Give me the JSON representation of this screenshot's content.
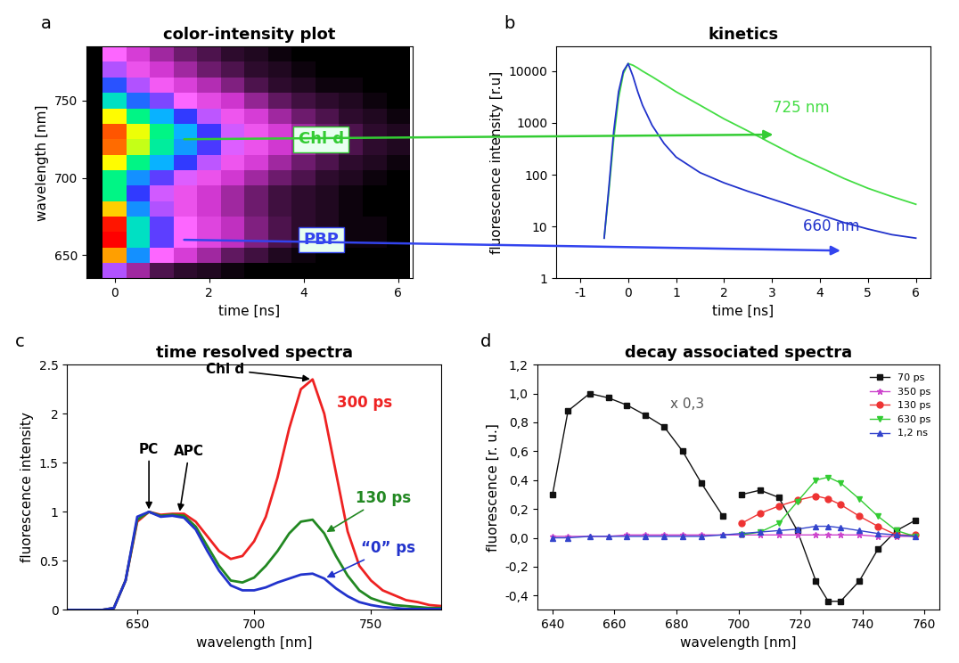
{
  "chart_data": [
    {
      "type": "heatmap",
      "panel": "a",
      "title": "color-intensity plot",
      "x_label": "time [ns]",
      "y_label": "wavelength [nm]",
      "x": [
        -0.5,
        0,
        0.5,
        1,
        1.5,
        2,
        2.5,
        3,
        3.5,
        4,
        4.5,
        5,
        5.5,
        6
      ],
      "y": [
        640,
        650,
        660,
        670,
        680,
        690,
        700,
        710,
        720,
        730,
        740,
        750,
        760,
        770,
        780
      ],
      "cells": [
        [
          0,
          0.3,
          0.1,
          0.05,
          0.03,
          0.02,
          0.01,
          0,
          0,
          0,
          0,
          0,
          0,
          0
        ],
        [
          0,
          0.85,
          0.45,
          0.25,
          0.15,
          0.1,
          0.06,
          0.04,
          0.02,
          0.01,
          0,
          0,
          0,
          0
        ],
        [
          0,
          1.0,
          0.55,
          0.35,
          0.25,
          0.17,
          0.12,
          0.08,
          0.05,
          0.03,
          0.02,
          0.01,
          0.01,
          0
        ],
        [
          0,
          0.98,
          0.55,
          0.35,
          0.25,
          0.17,
          0.12,
          0.08,
          0.05,
          0.03,
          0.02,
          0.01,
          0.01,
          0
        ],
        [
          0,
          0.8,
          0.45,
          0.3,
          0.2,
          0.14,
          0.1,
          0.07,
          0.04,
          0.03,
          0.02,
          0.01,
          0,
          0
        ],
        [
          0,
          0.6,
          0.38,
          0.28,
          0.2,
          0.14,
          0.1,
          0.07,
          0.04,
          0.03,
          0.02,
          0.01,
          0,
          0
        ],
        [
          0,
          0.6,
          0.45,
          0.35,
          0.27,
          0.2,
          0.14,
          0.1,
          0.07,
          0.05,
          0.03,
          0.02,
          0.01,
          0
        ],
        [
          0,
          0.75,
          0.6,
          0.48,
          0.38,
          0.29,
          0.21,
          0.15,
          0.1,
          0.07,
          0.05,
          0.03,
          0.02,
          0.01
        ],
        [
          0,
          0.9,
          0.72,
          0.58,
          0.46,
          0.36,
          0.27,
          0.2,
          0.14,
          0.1,
          0.07,
          0.05,
          0.03,
          0.02
        ],
        [
          0,
          0.92,
          0.74,
          0.6,
          0.48,
          0.37,
          0.28,
          0.21,
          0.15,
          0.1,
          0.07,
          0.05,
          0.03,
          0.02
        ],
        [
          0,
          0.75,
          0.6,
          0.48,
          0.38,
          0.29,
          0.21,
          0.15,
          0.1,
          0.07,
          0.05,
          0.03,
          0.02,
          0.01
        ],
        [
          0,
          0.55,
          0.42,
          0.33,
          0.25,
          0.18,
          0.13,
          0.09,
          0.06,
          0.04,
          0.03,
          0.02,
          0.01,
          0
        ],
        [
          0,
          0.4,
          0.3,
          0.22,
          0.16,
          0.11,
          0.08,
          0.05,
          0.03,
          0.02,
          0.01,
          0.01,
          0,
          0
        ],
        [
          0,
          0.3,
          0.2,
          0.14,
          0.1,
          0.07,
          0.05,
          0.03,
          0.02,
          0.01,
          0,
          0,
          0,
          0
        ],
        [
          0,
          0.25,
          0.15,
          0.1,
          0.07,
          0.05,
          0.03,
          0.02,
          0.01,
          0,
          0,
          0,
          0,
          0
        ]
      ],
      "xlim": [
        -0.6,
        6.3
      ],
      "xticks": [
        0,
        2,
        4,
        6
      ],
      "ylim": [
        635,
        785
      ],
      "yticks": [
        650,
        700,
        750
      ],
      "annotations": [
        {
          "text": "Chl d",
          "y": 725,
          "color": "#33cc33"
        },
        {
          "text": "PBP",
          "y": 660,
          "color": "#3344ee"
        }
      ]
    },
    {
      "type": "line",
      "panel": "b",
      "title": "kinetics",
      "log": "y",
      "x_label": "time [ns]",
      "y_label": "fluorescence intensity [r.u]",
      "x": [
        -0.5,
        -0.4,
        -0.3,
        -0.2,
        -0.1,
        0,
        0.1,
        0.2,
        0.3,
        0.5,
        0.75,
        1,
        1.5,
        2,
        2.5,
        3,
        3.5,
        4,
        4.5,
        5,
        5.5,
        6
      ],
      "series": [
        {
          "name": "725 nm",
          "color": "#44dd44",
          "values": [
            6,
            50,
            500,
            3000,
            9000,
            14000,
            13000,
            11500,
            10000,
            7800,
            5600,
            4000,
            2200,
            1200,
            700,
            400,
            230,
            140,
            85,
            55,
            38,
            27
          ]
        },
        {
          "name": "660 nm",
          "color": "#2233cc",
          "values": [
            6,
            60,
            700,
            4000,
            10000,
            14000,
            8000,
            4000,
            2200,
            900,
            400,
            220,
            110,
            70,
            48,
            34,
            24,
            17,
            12,
            9,
            7,
            6
          ]
        }
      ],
      "xlim": [
        -1.5,
        6.3
      ],
      "xticks": [
        -1,
        0,
        1,
        2,
        3,
        4,
        5,
        6
      ],
      "ylim": [
        1,
        30000
      ],
      "yticks": [
        1,
        10,
        100,
        1000,
        10000
      ]
    },
    {
      "type": "line",
      "panel": "c",
      "title": "time resolved spectra",
      "x_label": "wavelength [nm]",
      "y_label": "fluorescence intensity",
      "x": [
        620,
        625,
        630,
        635,
        640,
        645,
        650,
        655,
        660,
        665,
        670,
        675,
        680,
        685,
        690,
        695,
        700,
        705,
        710,
        715,
        720,
        725,
        730,
        735,
        740,
        745,
        750,
        755,
        760,
        765,
        770,
        775,
        780
      ],
      "series": [
        {
          "name": "300 ps",
          "color": "#ee2222",
          "values": [
            0,
            0,
            0,
            0,
            0.02,
            0.3,
            0.9,
            1.0,
            0.97,
            0.98,
            0.98,
            0.9,
            0.75,
            0.6,
            0.52,
            0.55,
            0.7,
            0.95,
            1.35,
            1.85,
            2.25,
            2.35,
            2.0,
            1.4,
            0.8,
            0.45,
            0.3,
            0.2,
            0.15,
            0.1,
            0.08,
            0.05,
            0.04
          ]
        },
        {
          "name": "130 ps",
          "color": "#228822",
          "values": [
            0,
            0,
            0,
            0,
            0.02,
            0.3,
            0.92,
            1.0,
            0.96,
            0.97,
            0.96,
            0.85,
            0.65,
            0.45,
            0.3,
            0.28,
            0.33,
            0.45,
            0.6,
            0.78,
            0.9,
            0.92,
            0.78,
            0.55,
            0.35,
            0.2,
            0.12,
            0.08,
            0.05,
            0.04,
            0.03,
            0.02,
            0.02
          ]
        },
        {
          "name": "“0” ps",
          "color": "#2233cc",
          "values": [
            0,
            0,
            0,
            0,
            0.02,
            0.3,
            0.95,
            1.0,
            0.95,
            0.96,
            0.94,
            0.82,
            0.6,
            0.4,
            0.25,
            0.2,
            0.2,
            0.23,
            0.28,
            0.32,
            0.36,
            0.37,
            0.32,
            0.22,
            0.14,
            0.08,
            0.05,
            0.03,
            0.02,
            0.01,
            0.01,
            0.01,
            0.01
          ]
        }
      ],
      "annotations": [
        {
          "text": "PC",
          "x": 655
        },
        {
          "text": "APC",
          "x": 668
        },
        {
          "text": "Chl d",
          "x": 725
        }
      ],
      "xlim": [
        620,
        780
      ],
      "xticks": [
        650,
        700,
        750
      ],
      "ylim": [
        0,
        2.5
      ],
      "yticks": [
        0,
        0.5,
        1,
        1.5,
        2,
        2.5
      ]
    },
    {
      "type": "line",
      "panel": "d",
      "title": "decay associated spectra",
      "x_label": "wavelength [nm]",
      "y_label": "fluorescence [r. u.]",
      "legend": "upper right",
      "series": [
        {
          "name": "70 ps",
          "color": "#111111",
          "marker": "square",
          "x": [
            640,
            645,
            652,
            658,
            664,
            670,
            676,
            682,
            688,
            695,
            698,
            701,
            707,
            713,
            719,
            725,
            729,
            733,
            739,
            745,
            751,
            757
          ],
          "values": [
            0.3,
            0.88,
            1.0,
            0.97,
            0.92,
            0.85,
            0.77,
            0.6,
            0.38,
            0.15,
            null,
            0.3,
            0.33,
            0.28,
            0.05,
            -0.3,
            -0.44,
            -0.44,
            -0.3,
            -0.08,
            0.05,
            0.12
          ]
        },
        {
          "name": "350 ps",
          "color": "#cc44cc",
          "marker": "star",
          "x": [
            640,
            645,
            652,
            658,
            664,
            670,
            676,
            682,
            688,
            695,
            701,
            707,
            713,
            719,
            725,
            729,
            733,
            739,
            745,
            751,
            757
          ],
          "values": [
            0.01,
            0.01,
            0.01,
            0.01,
            0.02,
            0.02,
            0.02,
            0.02,
            0.02,
            0.02,
            0.02,
            0.02,
            0.02,
            0.02,
            0.02,
            0.02,
            0.02,
            0.02,
            0.01,
            0.01,
            0.01
          ]
        },
        {
          "name": "130 ps",
          "color": "#ee3333",
          "marker": "circle",
          "x": [
            701,
            707,
            713,
            719,
            725,
            729,
            733,
            739,
            745,
            751,
            757
          ],
          "values": [
            0.1,
            0.17,
            0.22,
            0.26,
            0.29,
            0.27,
            0.23,
            0.15,
            0.08,
            0.02,
            0.02
          ]
        },
        {
          "name": "630 ps",
          "color": "#33cc33",
          "marker": "triangle_down",
          "x": [
            701,
            707,
            713,
            719,
            725,
            729,
            733,
            739,
            745,
            751,
            757
          ],
          "values": [
            0.02,
            0.04,
            0.1,
            0.25,
            0.4,
            0.42,
            0.38,
            0.27,
            0.15,
            0.05,
            0.01
          ]
        },
        {
          "name": "1,2 ns",
          "color": "#3344cc",
          "marker": "triangle_up",
          "x": [
            640,
            645,
            652,
            658,
            664,
            670,
            676,
            682,
            688,
            695,
            701,
            707,
            713,
            719,
            725,
            729,
            733,
            739,
            745,
            751,
            757
          ],
          "values": [
            0.0,
            0.0,
            0.01,
            0.01,
            0.01,
            0.01,
            0.01,
            0.01,
            0.01,
            0.02,
            0.03,
            0.04,
            0.05,
            0.06,
            0.08,
            0.08,
            0.07,
            0.05,
            0.03,
            0.02,
            0.01
          ]
        }
      ],
      "annotations": [
        {
          "text": "x 0,3"
        }
      ],
      "xlim": [
        635,
        765
      ],
      "xticks": [
        640,
        660,
        680,
        700,
        720,
        740,
        760
      ],
      "ylim": [
        -0.5,
        1.2
      ],
      "yticks": [
        {
          "value": -0.4,
          "label": "-0,4"
        },
        {
          "value": -0.2,
          "label": "-0,2"
        },
        {
          "value": 0.0,
          "label": "0,0"
        },
        {
          "value": 0.2,
          "label": "0,2"
        },
        {
          "value": 0.4,
          "label": "0,4"
        },
        {
          "value": 0.6,
          "label": "0,6"
        },
        {
          "value": 0.8,
          "label": "0,8"
        },
        {
          "value": 1.0,
          "label": "1,0"
        },
        {
          "value": 1.2,
          "label": "1,2"
        }
      ]
    }
  ]
}
